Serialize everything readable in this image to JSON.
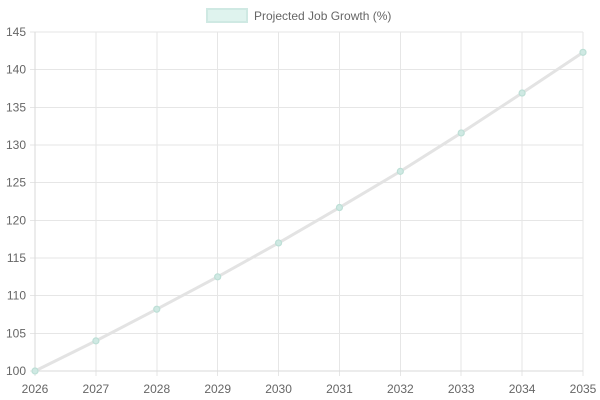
{
  "chart_data": {
    "type": "line",
    "x": [
      2026,
      2027,
      2028,
      2029,
      2030,
      2031,
      2032,
      2033,
      2034,
      2035
    ],
    "series": [
      {
        "name": "Projected Job Growth (%)",
        "values": [
          100,
          104,
          108.2,
          112.5,
          117,
          121.7,
          126.5,
          131.6,
          136.9,
          142.3
        ]
      }
    ],
    "ylim": [
      100,
      145
    ],
    "xlim": [
      2026,
      2035
    ],
    "yticks": [
      100,
      105,
      110,
      115,
      120,
      125,
      130,
      135,
      140,
      145
    ],
    "xticks": [
      2026,
      2027,
      2028,
      2029,
      2030,
      2031,
      2032,
      2033,
      2034,
      2035
    ],
    "grid": true,
    "legend_position": "top-center",
    "colors": {
      "line": "#e3e3e3",
      "point_fill": "#cfe9e3",
      "point_stroke": "#bddfd6",
      "legend_fill": "#dff3ee",
      "legend_stroke": "#cfe9e3"
    }
  }
}
